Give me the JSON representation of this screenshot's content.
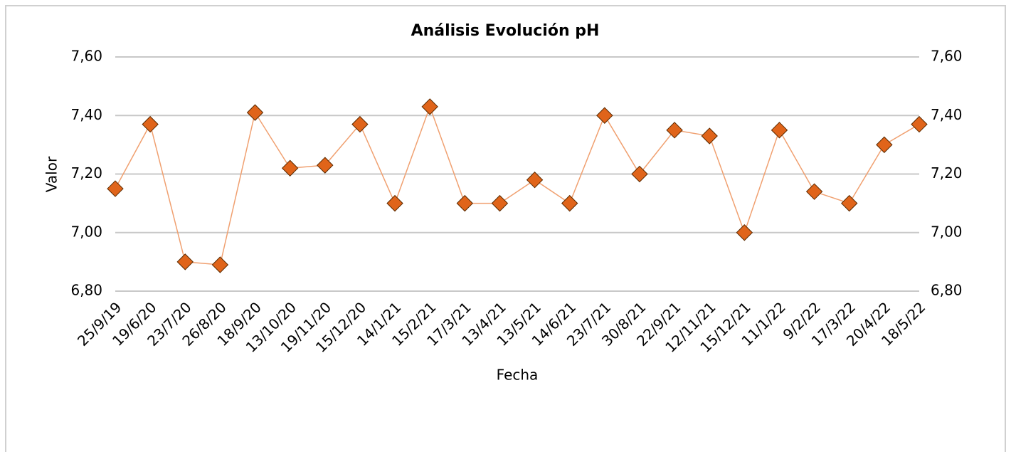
{
  "chart_data": {
    "type": "line",
    "title": "Análisis Evolución pH",
    "x_label": "Fecha",
    "y_label": "Valor",
    "categories": [
      "25/9/19",
      "19/6/20",
      "23/7/20",
      "26/8/20",
      "18/9/20",
      "13/10/20",
      "19/11/20",
      "15/12/20",
      "14/1/21",
      "15/2/21",
      "17/3/21",
      "13/4/21",
      "13/5/21",
      "14/6/21",
      "23/7/21",
      "30/8/21",
      "22/9/21",
      "12/11/21",
      "15/12/21",
      "11/1/22",
      "9/2/22",
      "17/3/22",
      "20/4/22",
      "18/5/22"
    ],
    "series": [
      {
        "name": "pH",
        "color": "#e0641a",
        "values": [
          7.15,
          7.37,
          6.9,
          6.89,
          7.41,
          7.22,
          7.23,
          7.37,
          7.1,
          7.43,
          7.1,
          7.1,
          7.18,
          7.1,
          7.4,
          7.2,
          7.35,
          7.33,
          7.0,
          7.35,
          7.14,
          7.1,
          7.3,
          7.37
        ]
      }
    ],
    "ylim": [
      6.8,
      7.6
    ],
    "yticks": [
      {
        "value": 6.8,
        "label": "6,80"
      },
      {
        "value": 7.0,
        "label": "7,00"
      },
      {
        "value": 7.2,
        "label": "7,20"
      },
      {
        "value": 7.4,
        "label": "7,40"
      },
      {
        "value": 7.6,
        "label": "7,60"
      }
    ],
    "grid": true
  }
}
